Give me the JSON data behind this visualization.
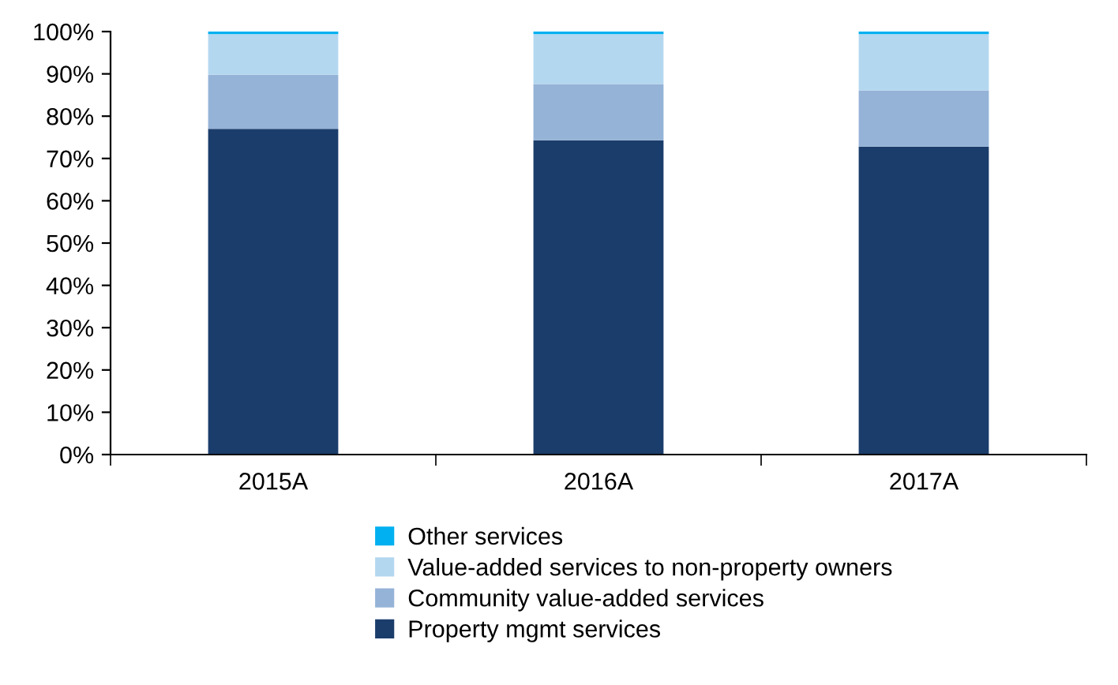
{
  "chart_data": {
    "type": "bar",
    "stacked": true,
    "categories": [
      "2015A",
      "2016A",
      "2017A"
    ],
    "series": [
      {
        "name": "Property mgmt services",
        "color": "#1b3d6b",
        "values": [
          77.0,
          74.3,
          72.8
        ]
      },
      {
        "name": "Community value-added services",
        "color": "#95b3d7",
        "values": [
          12.8,
          13.3,
          13.3
        ]
      },
      {
        "name": "Value-added services to non-property owners",
        "color": "#b4d7f0",
        "values": [
          9.6,
          11.8,
          13.3
        ]
      },
      {
        "name": "Other services",
        "color": "#00b0f0",
        "values": [
          0.6,
          0.6,
          0.6
        ]
      }
    ],
    "ylim": [
      0,
      100
    ],
    "yticks": [
      {
        "value": 0,
        "label": "0%"
      },
      {
        "value": 10,
        "label": "10%"
      },
      {
        "value": 20,
        "label": "20%"
      },
      {
        "value": 30,
        "label": "30%"
      },
      {
        "value": 40,
        "label": "40%"
      },
      {
        "value": 50,
        "label": "50%"
      },
      {
        "value": 60,
        "label": "60%"
      },
      {
        "value": 70,
        "label": "70%"
      },
      {
        "value": 80,
        "label": "80%"
      },
      {
        "value": 90,
        "label": "90%"
      },
      {
        "value": 100,
        "label": "100%"
      }
    ],
    "grid": false,
    "legend": "bottom"
  }
}
